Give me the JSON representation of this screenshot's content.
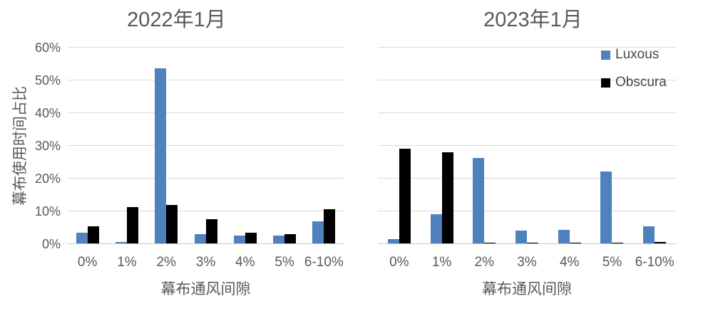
{
  "colors": {
    "luxous": "#4F81BD",
    "obscura": "#000000",
    "gridline": "#D9D9D9",
    "text": "#595959",
    "background": "#FFFFFF"
  },
  "y_axis": {
    "title": "幕布使用时间占比",
    "ticks": [
      "0%",
      "10%",
      "20%",
      "30%",
      "40%",
      "50%",
      "60%"
    ],
    "tick_values": [
      0,
      10,
      20,
      30,
      40,
      50,
      60
    ],
    "max": 60
  },
  "x_axis": {
    "title": "幕布通风间隙"
  },
  "legend": {
    "position": "top-right-of-second-chart",
    "items": [
      {
        "label": "Luxous",
        "color": "#4F81BD"
      },
      {
        "label": "Obscura",
        "color": "#000000"
      }
    ]
  },
  "chart_data": [
    {
      "type": "bar",
      "title": "2022年1月",
      "xlabel": "幕布通风间隙",
      "ylabel": "幕布使用时间占比",
      "ylim": [
        0,
        60
      ],
      "grid": true,
      "categories": [
        "0%",
        "1%",
        "2%",
        "3%",
        "4%",
        "5%",
        "6-10%"
      ],
      "series": [
        {
          "name": "Luxous",
          "color": "#4F81BD",
          "values": [
            3.3,
            0.5,
            53.5,
            2.8,
            2.5,
            2.5,
            6.7
          ]
        },
        {
          "name": "Obscura",
          "color": "#000000",
          "values": [
            5.3,
            11.0,
            11.8,
            7.4,
            3.3,
            2.8,
            10.5
          ]
        }
      ]
    },
    {
      "type": "bar",
      "title": "2023年1月",
      "xlabel": "幕布通风间隙",
      "ylabel": "幕布使用时间占比",
      "ylim": [
        0,
        60
      ],
      "grid": true,
      "categories": [
        "0%",
        "1%",
        "2%",
        "3%",
        "4%",
        "5%",
        "6-10%"
      ],
      "series": [
        {
          "name": "Luxous",
          "color": "#4F81BD",
          "values": [
            1.3,
            9.0,
            26.0,
            3.9,
            4.1,
            22.0,
            5.3
          ]
        },
        {
          "name": "Obscura",
          "color": "#000000",
          "values": [
            29.0,
            27.8,
            0.2,
            0.2,
            0.2,
            0.3,
            0.5
          ]
        }
      ]
    }
  ]
}
